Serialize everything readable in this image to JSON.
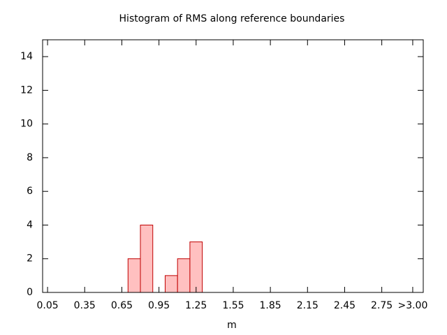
{
  "chart_data": {
    "type": "histogram",
    "title": "Histogram of RMS along reference boundaries",
    "xlabel": "m",
    "bins": [
      0.7,
      0.8,
      0.9,
      1.0,
      1.1,
      1.2,
      1.3
    ],
    "counts": [
      2,
      4,
      0,
      1,
      2,
      3
    ],
    "color": "#ffc0c0",
    "edgecolor": "#c00000",
    "xlim": [
      0.01,
      3.085
    ],
    "ylim": [
      0,
      15
    ],
    "xticks": [
      0.05,
      0.35,
      0.65,
      0.95,
      1.25,
      1.55,
      1.85,
      2.15,
      2.45,
      2.75,
      {
        "value": 3.0,
        "label": ">3.00"
      }
    ],
    "yticks": [
      0,
      2,
      4,
      6,
      8,
      10,
      12,
      14
    ]
  }
}
